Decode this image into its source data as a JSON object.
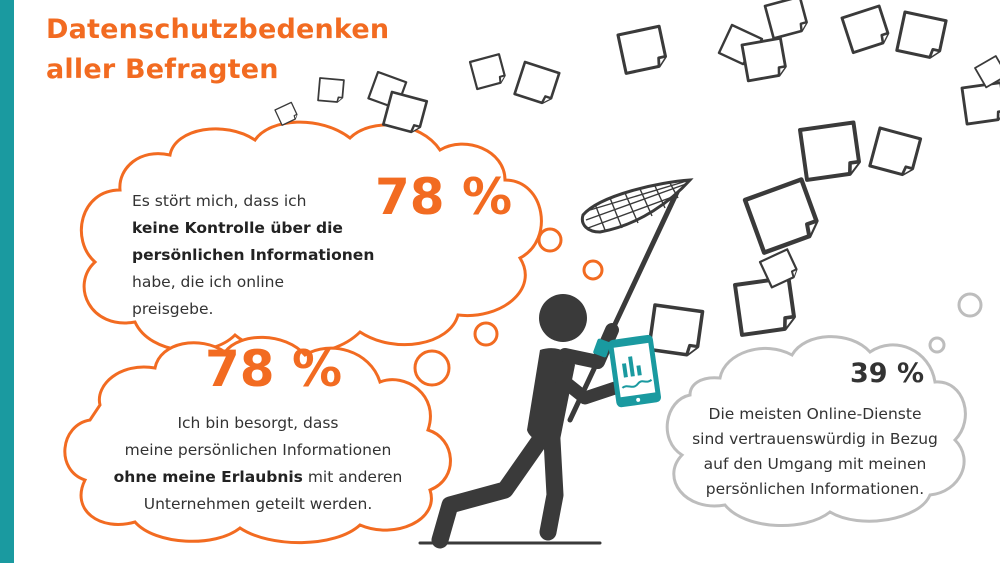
{
  "title": {
    "line1": "Datenschutzbedenken",
    "line2": "aller Befragten"
  },
  "colors": {
    "accent": "#f26b21",
    "stripe": "#1a9aa0",
    "figure": "#3a3a3a",
    "tablet": "#1a9aa0",
    "neutral_bubble": "#bdbdbd"
  },
  "bubble1": {
    "percent": "78 %",
    "line1": "Es stört mich, dass ich",
    "line2_bold": "keine Kontrolle über die",
    "line3_bold": "persönlichen Informationen",
    "line4": "habe, die ich online",
    "line5": "preisgebe."
  },
  "bubble2": {
    "percent": "78 %",
    "line1": "Ich bin besorgt, dass",
    "line2": "meine persönlichen Informationen",
    "line3_bold": "ohne meine Erlaubnis",
    "line3_rest": " mit anderen",
    "line4": "Unternehmen geteilt werden."
  },
  "bubble3": {
    "percent": "39 %",
    "line1": "Die meisten Online-Dienste",
    "line2": "sind vertrauenswürdig in Bezug",
    "line3": "auf den Umgang mit meinen",
    "line4": "persönlichen Informationen."
  },
  "illustration": {
    "figure": "person-with-butterfly-net-icon",
    "device": "tablet-icon",
    "papers": "flying-paper-icon"
  }
}
